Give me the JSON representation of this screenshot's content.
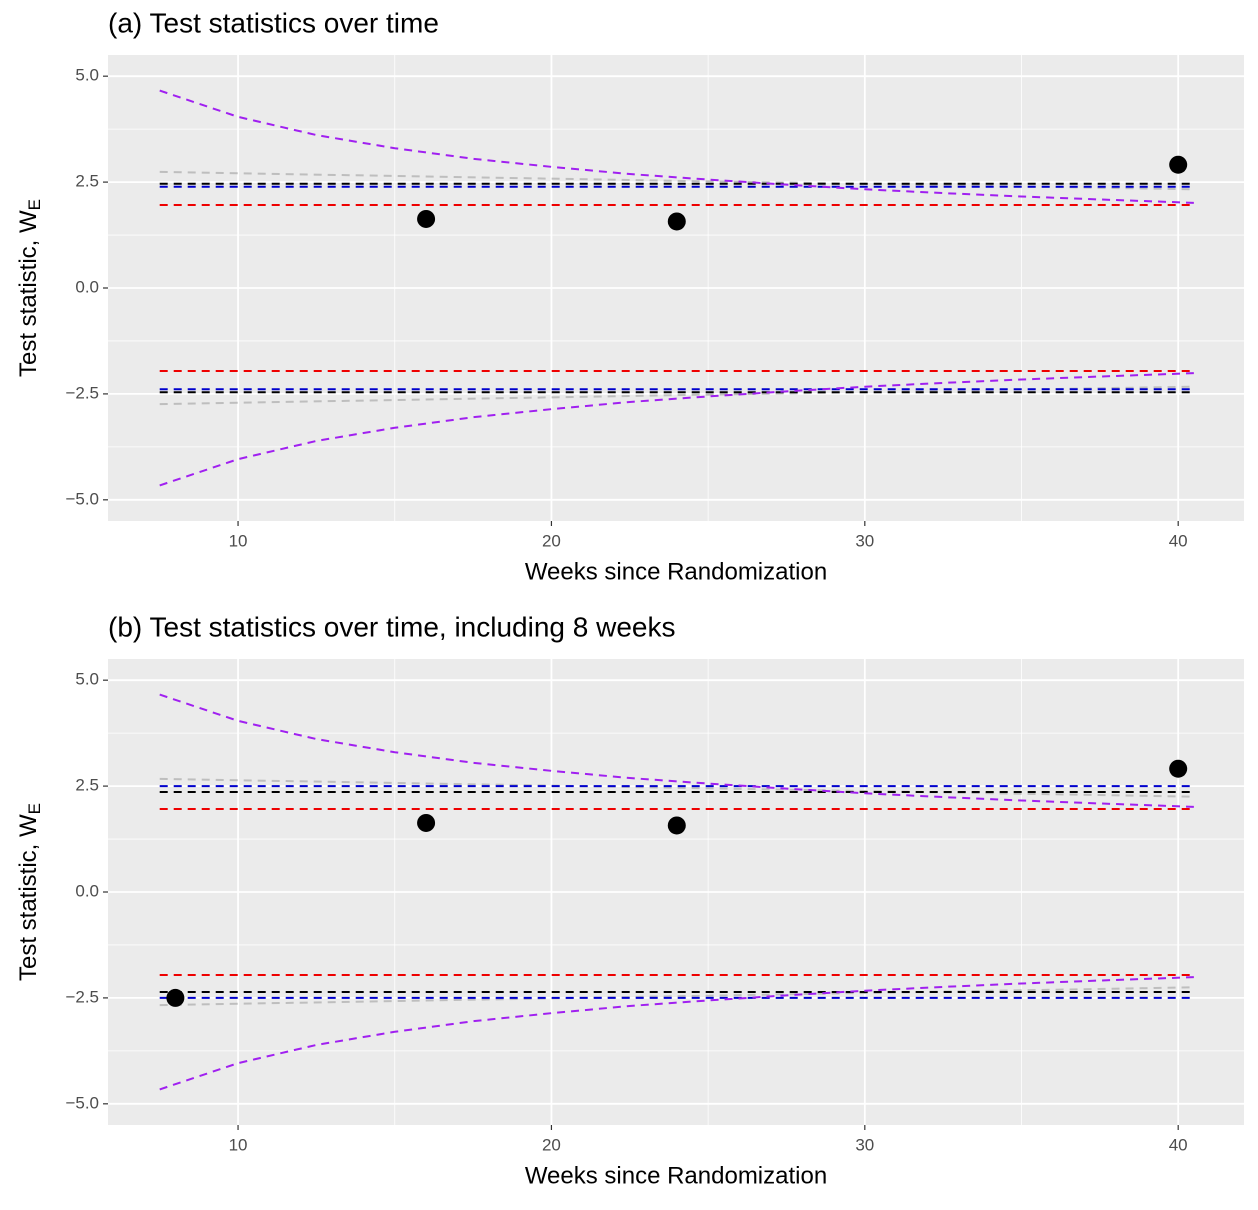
{
  "chart_data": [
    {
      "type": "line",
      "title": "(a) Test statistics over time",
      "xlabel": "Weeks since Randomization",
      "ylabel": {
        "text": "Test statistic, W",
        "subscript": "E"
      },
      "xlim": [
        5.85,
        42.1
      ],
      "xticks": [
        10,
        20,
        30,
        40
      ],
      "xminor": [
        15,
        25,
        35
      ],
      "ylim": [
        -5.5,
        5.5
      ],
      "yticks": [
        {
          "value": -5,
          "label": "−5.0"
        },
        {
          "value": -2.5,
          "label": "−2.5"
        },
        {
          "value": 0,
          "label": "0.0"
        },
        {
          "value": 2.5,
          "label": "2.5"
        },
        {
          "value": 5,
          "label": "5.0"
        }
      ],
      "yminor": [
        -3.75,
        -1.25,
        1.25,
        3.75
      ],
      "grid": true,
      "series": [
        {
          "color": "#bebebe",
          "style": "dashed",
          "x": [
            7.5,
            24,
            40.5
          ],
          "values": [
            2.74,
            2.53,
            2.33
          ]
        },
        {
          "color": "#bebebe",
          "style": "dashed",
          "x": [
            7.5,
            24,
            40.5
          ],
          "values": [
            -2.74,
            -2.53,
            -2.33
          ]
        },
        {
          "color": "#000000",
          "style": "dashed",
          "x": [
            7.5,
            40.5
          ],
          "values": [
            2.46,
            2.46
          ]
        },
        {
          "color": "#000000",
          "style": "dashed",
          "x": [
            7.5,
            40.5
          ],
          "values": [
            -2.46,
            -2.46
          ]
        },
        {
          "color": "#0000cd",
          "style": "dashed",
          "x": [
            7.5,
            40.5
          ],
          "values": [
            2.39,
            2.39
          ]
        },
        {
          "color": "#0000cd",
          "style": "dashed",
          "x": [
            7.5,
            40.5
          ],
          "values": [
            -2.39,
            -2.39
          ]
        },
        {
          "color": "#ee0000",
          "style": "dashed",
          "x": [
            7.5,
            40.5
          ],
          "values": [
            1.96,
            1.96
          ]
        },
        {
          "color": "#ee0000",
          "style": "dashed",
          "x": [
            7.5,
            40.5
          ],
          "values": [
            -1.96,
            -1.96
          ]
        },
        {
          "color": "#a020f0",
          "style": "dashed",
          "x": [
            7.5,
            10,
            12.5,
            15,
            17.5,
            20,
            22.5,
            25,
            27.5,
            30,
            32.5,
            35,
            37.5,
            40.5
          ],
          "values": [
            4.66,
            4.04,
            3.61,
            3.3,
            3.05,
            2.86,
            2.69,
            2.56,
            2.44,
            2.33,
            2.24,
            2.16,
            2.09,
            2.01
          ]
        },
        {
          "color": "#a020f0",
          "style": "dashed",
          "x": [
            7.5,
            10,
            12.5,
            15,
            17.5,
            20,
            22.5,
            25,
            27.5,
            30,
            32.5,
            35,
            37.5,
            40.5
          ],
          "values": [
            -4.66,
            -4.04,
            -3.61,
            -3.3,
            -3.05,
            -2.86,
            -2.69,
            -2.56,
            -2.44,
            -2.33,
            -2.24,
            -2.16,
            -2.09,
            -2.01
          ]
        },
        {
          "color": "#000000",
          "style": "points",
          "x": [
            16,
            24,
            40
          ],
          "values": [
            1.63,
            1.57,
            2.91
          ]
        }
      ]
    },
    {
      "type": "line",
      "title": "(b) Test statistics over time, including 8 weeks",
      "xlabel": "Weeks since Randomization",
      "ylabel": {
        "text": "Test statistic, W",
        "subscript": "E"
      },
      "xlim": [
        5.85,
        42.1
      ],
      "xticks": [
        10,
        20,
        30,
        40
      ],
      "xminor": [
        15,
        25,
        35
      ],
      "ylim": [
        -5.5,
        5.5
      ],
      "yticks": [
        {
          "value": -5,
          "label": "−5.0"
        },
        {
          "value": -2.5,
          "label": "−2.5"
        },
        {
          "value": 0,
          "label": "0.0"
        },
        {
          "value": 2.5,
          "label": "2.5"
        },
        {
          "value": 5,
          "label": "5.0"
        }
      ],
      "yminor": [
        -3.75,
        -1.25,
        1.25,
        3.75
      ],
      "grid": true,
      "series": [
        {
          "color": "#bebebe",
          "style": "dashed",
          "x": [
            7.5,
            24,
            40.5
          ],
          "values": [
            2.67,
            2.46,
            2.25
          ]
        },
        {
          "color": "#bebebe",
          "style": "dashed",
          "x": [
            7.5,
            24,
            40.5
          ],
          "values": [
            -2.67,
            -2.46,
            -2.25
          ]
        },
        {
          "color": "#000000",
          "style": "dashed",
          "x": [
            7.5,
            40.5
          ],
          "values": [
            2.36,
            2.36
          ]
        },
        {
          "color": "#000000",
          "style": "dashed",
          "x": [
            7.5,
            40.5
          ],
          "values": [
            -2.36,
            -2.36
          ]
        },
        {
          "color": "#0000cd",
          "style": "dashed",
          "x": [
            7.5,
            40.5
          ],
          "values": [
            2.5,
            2.5
          ]
        },
        {
          "color": "#0000cd",
          "style": "dashed",
          "x": [
            7.5,
            40.5
          ],
          "values": [
            -2.5,
            -2.5
          ]
        },
        {
          "color": "#ee0000",
          "style": "dashed",
          "x": [
            7.5,
            40.5
          ],
          "values": [
            1.96,
            1.96
          ]
        },
        {
          "color": "#ee0000",
          "style": "dashed",
          "x": [
            7.5,
            40.5
          ],
          "values": [
            -1.96,
            -1.96
          ]
        },
        {
          "color": "#a020f0",
          "style": "dashed",
          "x": [
            7.5,
            10,
            12.5,
            15,
            17.5,
            20,
            22.5,
            25,
            27.5,
            30,
            32.5,
            35,
            37.5,
            40.5
          ],
          "values": [
            4.66,
            4.04,
            3.61,
            3.3,
            3.05,
            2.86,
            2.69,
            2.56,
            2.44,
            2.33,
            2.24,
            2.16,
            2.09,
            2.01
          ]
        },
        {
          "color": "#a020f0",
          "style": "dashed",
          "x": [
            7.5,
            10,
            12.5,
            15,
            17.5,
            20,
            22.5,
            25,
            27.5,
            30,
            32.5,
            35,
            37.5,
            40.5
          ],
          "values": [
            -4.66,
            -4.04,
            -3.61,
            -3.3,
            -3.05,
            -2.86,
            -2.69,
            -2.56,
            -2.44,
            -2.33,
            -2.24,
            -2.16,
            -2.09,
            -2.01
          ]
        },
        {
          "color": "#000000",
          "style": "points",
          "x": [
            8,
            16,
            24,
            40
          ],
          "values": [
            -2.5,
            1.63,
            1.57,
            2.91
          ]
        }
      ]
    }
  ]
}
